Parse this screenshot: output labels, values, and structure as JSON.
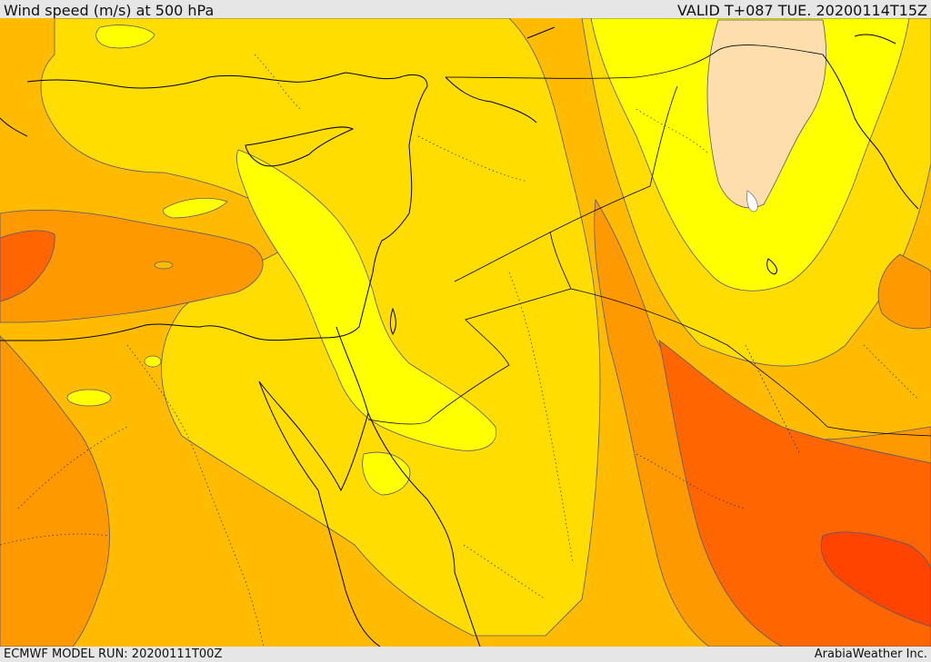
{
  "header": {
    "title": "Wind speed (m/s) at 500 hPa",
    "valid_time": "VALID T+087 TUE. 20200114T15Z"
  },
  "footer": {
    "model_run": "ECMWF MODEL RUN: 20200111T00Z",
    "credit": "ArabiaWeather Inc."
  },
  "colors": {
    "band_1": "#ffffff",
    "band_2": "#ffdead",
    "band_3": "#ffff00",
    "band_4": "#ffdd00",
    "band_5": "#ffbb00",
    "band_6": "#ff9900",
    "band_7": "#ff6600",
    "band_8": "#ff4400",
    "coastline": "#000000",
    "contour_line": "#555577"
  }
}
